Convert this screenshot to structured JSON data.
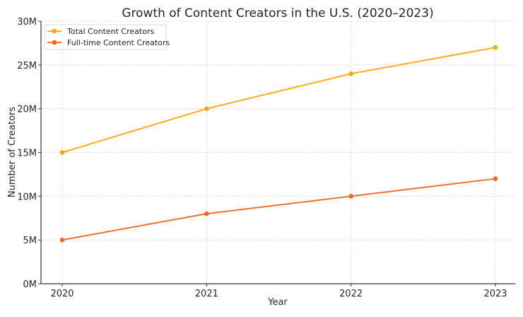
{
  "chart_data": {
    "type": "line",
    "title": "Growth of Content Creators in the U.S. (2020–2023)",
    "xlabel": "Year",
    "ylabel": "Number of Creators",
    "x": [
      "2020",
      "2021",
      "2022",
      "2023"
    ],
    "ylim": [
      0,
      30
    ],
    "yticks": [
      0,
      5,
      10,
      15,
      20,
      25,
      30
    ],
    "ytick_labels": [
      "0M",
      "5M",
      "10M",
      "15M",
      "20M",
      "25M",
      "30M"
    ],
    "grid": true,
    "legend_position": "top-left",
    "series": [
      {
        "name": "Total Content Creators",
        "values": [
          15,
          20,
          24,
          27
        ],
        "color": "#FFA500"
      },
      {
        "name": "Full-time Content Creators",
        "values": [
          5,
          8,
          10,
          12
        ],
        "color": "#F26522"
      }
    ]
  }
}
